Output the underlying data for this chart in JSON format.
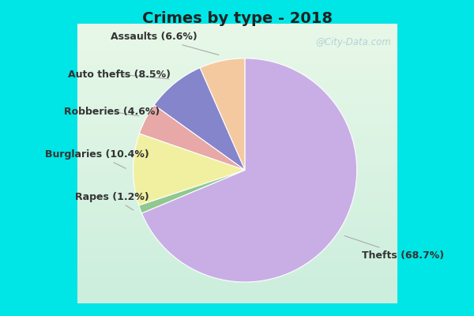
{
  "title": "Crimes by type - 2018",
  "title_fontsize": 14,
  "title_fontweight": "bold",
  "slices": [
    {
      "label": "Thefts",
      "pct": 68.7,
      "color": "#c9aee5"
    },
    {
      "label": "Assaults",
      "pct": 6.6,
      "color": "#f5c9a0"
    },
    {
      "label": "Auto thefts",
      "pct": 8.5,
      "color": "#8585cc"
    },
    {
      "label": "Robberies",
      "pct": 4.6,
      "color": "#e8a8a8"
    },
    {
      "label": "Burglaries",
      "pct": 10.4,
      "color": "#f0f0a0"
    },
    {
      "label": "Rapes",
      "pct": 1.2,
      "color": "#90c890"
    }
  ],
  "ordered_labels": [
    "Assaults",
    "Auto thefts",
    "Robberies",
    "Burglaries",
    "Rapes",
    "Thefts"
  ],
  "background_cyan": "#00e5e5",
  "background_green": "#d4edda",
  "background_green2": "#e8f5e0",
  "label_fontsize": 9,
  "label_color": "#333333",
  "watermark": "@City-Data.com",
  "startangle": 90,
  "counterclock": true
}
